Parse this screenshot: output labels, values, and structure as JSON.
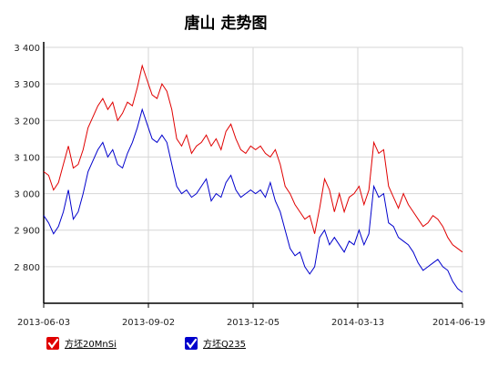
{
  "chart_data": {
    "type": "line",
    "title": "唐山 走势图",
    "xlabel": "",
    "ylabel": "",
    "x_tick_labels": [
      "2013-06-03",
      "2013-09-02",
      "2013-12-05",
      "2014-03-13",
      "2014-06-19"
    ],
    "y_tick_labels": [
      "3 400",
      "3 300",
      "3 200",
      "3 100",
      "3 000",
      "2 900",
      "2 800"
    ],
    "y_ticks": [
      3400,
      3300,
      3200,
      3100,
      3000,
      2900,
      2800
    ],
    "ylim": [
      2700,
      3400
    ],
    "grid": true,
    "legend_position": "bottom-left",
    "series": [
      {
        "name": "方坯20MnSi",
        "color": "#e00000",
        "values": [
          3060,
          3050,
          3010,
          3030,
          3080,
          3130,
          3070,
          3080,
          3120,
          3180,
          3210,
          3240,
          3260,
          3230,
          3250,
          3200,
          3220,
          3250,
          3240,
          3290,
          3350,
          3310,
          3270,
          3260,
          3300,
          3280,
          3230,
          3150,
          3130,
          3160,
          3110,
          3130,
          3140,
          3160,
          3130,
          3150,
          3120,
          3170,
          3190,
          3150,
          3120,
          3110,
          3130,
          3120,
          3130,
          3110,
          3100,
          3120,
          3080,
          3020,
          3000,
          2970,
          2950,
          2930,
          2940,
          2890,
          2960,
          3040,
          3010,
          2950,
          3000,
          2950,
          2990,
          3000,
          3020,
          2970,
          3010,
          3140,
          3110,
          3120,
          3020,
          2990,
          2960,
          3000,
          2970,
          2950,
          2930,
          2910,
          2920,
          2940,
          2930,
          2910,
          2880,
          2860,
          2850,
          2840
        ]
      },
      {
        "name": "方坯Q235",
        "color": "#0000cc",
        "values": [
          2940,
          2920,
          2890,
          2910,
          2950,
          3010,
          2930,
          2950,
          3000,
          3060,
          3090,
          3120,
          3140,
          3100,
          3120,
          3080,
          3070,
          3110,
          3140,
          3180,
          3230,
          3190,
          3150,
          3140,
          3160,
          3140,
          3080,
          3020,
          3000,
          3010,
          2990,
          3000,
          3020,
          3040,
          2980,
          3000,
          2990,
          3030,
          3050,
          3010,
          2990,
          3000,
          3010,
          3000,
          3010,
          2990,
          3030,
          2980,
          2950,
          2900,
          2850,
          2830,
          2840,
          2800,
          2780,
          2800,
          2880,
          2900,
          2860,
          2880,
          2860,
          2840,
          2870,
          2860,
          2900,
          2860,
          2890,
          3020,
          2990,
          3000,
          2920,
          2910,
          2880,
          2870,
          2860,
          2840,
          2810,
          2790,
          2800,
          2810,
          2820,
          2800,
          2790,
          2760,
          2740,
          2730
        ]
      }
    ]
  }
}
